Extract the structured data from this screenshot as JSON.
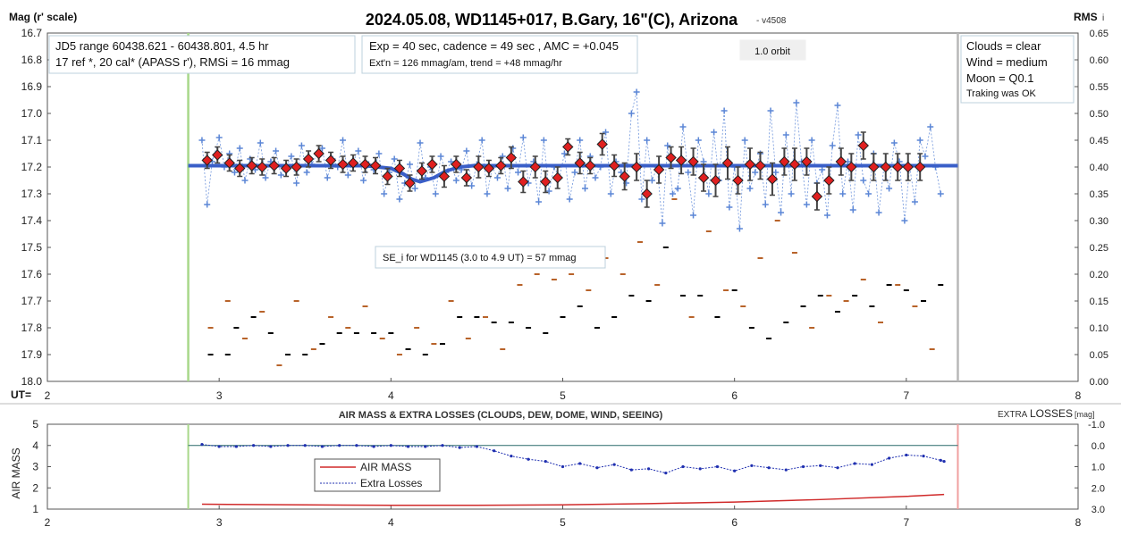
{
  "chart_data": [
    {
      "type": "scatter",
      "title": "2024.05.08, WD1145+017, B.Gary, 16\"(C), Arizona",
      "version": "- v4508",
      "ylabel": "Mag (r' scale)",
      "xlabel": "UT=",
      "y2label": "RMS",
      "y2label_sub": "i",
      "xlim": [
        2,
        8
      ],
      "ylim": [
        18.0,
        16.7
      ],
      "y2lim": [
        0.0,
        0.65
      ],
      "x_ticks": [
        "2",
        "3",
        "4",
        "5",
        "6",
        "7",
        "8"
      ],
      "y_ticks": [
        "16.7",
        "16.8",
        "16.9",
        "17.0",
        "17.1",
        "17.2",
        "17.3",
        "17.4",
        "17.5",
        "17.6",
        "17.7",
        "17.8",
        "17.9",
        "18.0"
      ],
      "y2_ticks": [
        "0.65",
        "0.60",
        "0.55",
        "0.50",
        "0.45",
        "0.40",
        "0.35",
        "0.30",
        "0.25",
        "0.20",
        "0.15",
        "0.10",
        "0.05",
        "0.00"
      ],
      "grid": false,
      "start_line_x": 2.82,
      "end_line_x": 7.3,
      "annotations": {
        "jd": [
          "JD5 range 60438.621 - 60438.801, 4.5 hr",
          "17 ref *, 20 cal*  (APASS r'), RMSi = 16 mmag"
        ],
        "exp": [
          "Exp = 40 sec, cadence = 49 sec , AMC = +0.045",
          "Ext'n = 126 mmag/am, trend = +48 mmag/hr"
        ],
        "orbit": "1.0 orbit",
        "cond": [
          "Clouds = clear",
          "Wind    = medium",
          "Moon   =  Q0.1",
          "Traking was OK"
        ],
        "se": "SE_i for WD1145 (3.0 to 4.9 UT) = 57 mmag"
      },
      "model": {
        "name": "model",
        "color": "#3a5fc8",
        "x": [
          2.82,
          3.85,
          4.0,
          4.07,
          4.12,
          4.17,
          4.25,
          4.32,
          4.4,
          4.48,
          7.3
        ],
        "y": [
          17.195,
          17.195,
          17.205,
          17.225,
          17.245,
          17.255,
          17.24,
          17.215,
          17.2,
          17.195,
          17.195
        ]
      },
      "series": [
        {
          "name": "raw",
          "color": "#5b86d6",
          "x": [
            2.9,
            2.93,
            2.96,
            3.0,
            3.03,
            3.06,
            3.09,
            3.12,
            3.15,
            3.18,
            3.21,
            3.24,
            3.27,
            3.3,
            3.33,
            3.36,
            3.39,
            3.42,
            3.45,
            3.48,
            3.51,
            3.54,
            3.57,
            3.6,
            3.63,
            3.66,
            3.69,
            3.72,
            3.75,
            3.78,
            3.81,
            3.84,
            3.87,
            3.9,
            3.93,
            3.96,
            3.99,
            4.02,
            4.05,
            4.08,
            4.11,
            4.14,
            4.17,
            4.2,
            4.23,
            4.26,
            4.29,
            4.32,
            4.35,
            4.38,
            4.41,
            4.44,
            4.47,
            4.5,
            4.53,
            4.56,
            4.59,
            4.62,
            4.65,
            4.68,
            4.71,
            4.74,
            4.77,
            4.8,
            4.83,
            4.86,
            4.89,
            4.92,
            4.95,
            4.98,
            5.01,
            5.04,
            5.07,
            5.1,
            5.13,
            5.16,
            5.19,
            5.22,
            5.25,
            5.28,
            5.31,
            5.34,
            5.37,
            5.4,
            5.43,
            5.46,
            5.49,
            5.52,
            5.55,
            5.58,
            5.61,
            5.64,
            5.67,
            5.7,
            5.73,
            5.76,
            5.79,
            5.82,
            5.85,
            5.88,
            5.91,
            5.94,
            5.97,
            6.0,
            6.03,
            6.06,
            6.09,
            6.12,
            6.15,
            6.18,
            6.21,
            6.24,
            6.27,
            6.3,
            6.33,
            6.36,
            6.39,
            6.42,
            6.45,
            6.48,
            6.51,
            6.54,
            6.57,
            6.6,
            6.63,
            6.66,
            6.69,
            6.72,
            6.75,
            6.78,
            6.81,
            6.84,
            6.87,
            6.9,
            6.93,
            6.96,
            6.99,
            7.02,
            7.05,
            7.08,
            7.11,
            7.14,
            7.17,
            7.2
          ],
          "y": [
            17.1,
            17.34,
            17.18,
            17.09,
            17.2,
            17.15,
            17.22,
            17.13,
            17.25,
            17.17,
            17.21,
            17.11,
            17.24,
            17.18,
            17.14,
            17.23,
            17.2,
            17.16,
            17.26,
            17.12,
            17.22,
            17.19,
            17.15,
            17.13,
            17.24,
            17.17,
            17.2,
            17.1,
            17.23,
            17.18,
            17.14,
            17.25,
            17.19,
            17.21,
            17.15,
            17.3,
            17.22,
            17.17,
            17.32,
            17.26,
            17.19,
            17.28,
            17.11,
            17.24,
            17.2,
            17.3,
            17.16,
            17.22,
            17.18,
            17.25,
            17.21,
            17.14,
            17.27,
            17.19,
            17.1,
            17.3,
            17.2,
            17.24,
            17.16,
            17.28,
            17.13,
            17.22,
            17.09,
            17.26,
            17.18,
            17.33,
            17.1,
            17.29,
            17.2,
            17.24,
            17.15,
            17.32,
            17.22,
            17.1,
            17.28,
            17.16,
            17.24,
            17.2,
            17.07,
            17.3,
            17.18,
            17.22,
            17.26,
            17.0,
            16.92,
            17.32,
            17.1,
            17.25,
            17.2,
            17.41,
            17.12,
            17.3,
            17.28,
            17.05,
            17.22,
            17.38,
            17.1,
            17.18,
            17.3,
            17.07,
            17.25,
            16.99,
            17.35,
            17.2,
            17.43,
            17.1,
            17.28,
            17.22,
            17.15,
            17.34,
            16.99,
            17.22,
            17.37,
            17.08,
            17.3,
            16.96,
            17.18,
            17.34,
            17.1,
            17.26,
            17.21,
            17.38,
            17.12,
            16.97,
            17.3,
            17.18,
            17.36,
            17.08,
            17.25,
            17.3,
            17.15,
            17.37,
            17.2,
            17.28,
            17.11,
            17.18,
            17.4,
            17.2,
            17.33,
            17.1,
            17.16,
            17.05,
            17.2,
            17.3
          ]
        },
        {
          "name": "binned",
          "color": "#e02020",
          "x": [
            2.93,
            2.99,
            3.06,
            3.12,
            3.19,
            3.25,
            3.32,
            3.39,
            3.45,
            3.52,
            3.58,
            3.65,
            3.72,
            3.78,
            3.85,
            3.91,
            3.98,
            4.05,
            4.11,
            4.18,
            4.24,
            4.31,
            4.38,
            4.44,
            4.51,
            4.57,
            4.64,
            4.7,
            4.77,
            4.84,
            4.9,
            4.97,
            5.03,
            5.1,
            5.16,
            5.23,
            5.3,
            5.36,
            5.43,
            5.49,
            5.56,
            5.63,
            5.69,
            5.76,
            5.82,
            5.89,
            5.96,
            6.02,
            6.09,
            6.15,
            6.22,
            6.29,
            6.35,
            6.42,
            6.48,
            6.55,
            6.62,
            6.68,
            6.75,
            6.81,
            6.88,
            6.95,
            7.01,
            7.08
          ],
          "y": [
            17.175,
            17.155,
            17.185,
            17.205,
            17.195,
            17.2,
            17.195,
            17.205,
            17.2,
            17.17,
            17.15,
            17.175,
            17.19,
            17.185,
            17.19,
            17.195,
            17.235,
            17.205,
            17.26,
            17.215,
            17.19,
            17.235,
            17.19,
            17.24,
            17.2,
            17.205,
            17.195,
            17.165,
            17.255,
            17.2,
            17.255,
            17.24,
            17.125,
            17.185,
            17.195,
            17.115,
            17.195,
            17.235,
            17.2,
            17.3,
            17.21,
            17.165,
            17.175,
            17.18,
            17.24,
            17.25,
            17.185,
            17.25,
            17.19,
            17.195,
            17.245,
            17.18,
            17.19,
            17.18,
            17.31,
            17.25,
            17.18,
            17.2,
            17.12,
            17.2,
            17.2,
            17.2,
            17.2,
            17.2
          ],
          "err": [
            0.03,
            0.03,
            0.03,
            0.03,
            0.03,
            0.03,
            0.03,
            0.03,
            0.03,
            0.03,
            0.03,
            0.03,
            0.03,
            0.03,
            0.03,
            0.03,
            0.03,
            0.03,
            0.03,
            0.03,
            0.03,
            0.04,
            0.03,
            0.03,
            0.04,
            0.03,
            0.03,
            0.04,
            0.04,
            0.04,
            0.04,
            0.04,
            0.03,
            0.04,
            0.03,
            0.04,
            0.04,
            0.05,
            0.05,
            0.05,
            0.05,
            0.04,
            0.05,
            0.05,
            0.05,
            0.06,
            0.06,
            0.05,
            0.06,
            0.05,
            0.06,
            0.05,
            0.06,
            0.05,
            0.05,
            0.05,
            0.05,
            0.05,
            0.05,
            0.05,
            0.05,
            0.05,
            0.05,
            0.05
          ]
        },
        {
          "name": "target rms",
          "color": "#000000",
          "x": [
            2.95,
            3.05,
            3.1,
            3.2,
            3.3,
            3.4,
            3.5,
            3.6,
            3.7,
            3.8,
            3.9,
            4.0,
            4.1,
            4.2,
            4.3,
            4.4,
            4.5,
            4.6,
            4.7,
            4.8,
            4.9,
            5.0,
            5.1,
            5.2,
            5.3,
            5.4,
            5.5,
            5.6,
            5.7,
            5.8,
            5.9,
            6.0,
            6.1,
            6.2,
            6.3,
            6.4,
            6.5,
            6.6,
            6.7,
            6.8,
            6.9,
            7.0,
            7.1,
            7.2
          ],
          "y": [
            0.05,
            0.05,
            0.1,
            0.12,
            0.09,
            0.05,
            0.05,
            0.07,
            0.09,
            0.09,
            0.09,
            0.09,
            0.06,
            0.05,
            0.07,
            0.12,
            0.12,
            0.11,
            0.11,
            0.1,
            0.09,
            0.12,
            0.14,
            0.1,
            0.12,
            0.16,
            0.15,
            0.25,
            0.16,
            0.16,
            0.12,
            0.17,
            0.1,
            0.08,
            0.11,
            0.14,
            0.16,
            0.13,
            0.16,
            0.14,
            0.18,
            0.17,
            0.15,
            0.18
          ]
        },
        {
          "name": "check star rms",
          "color": "#b8632a",
          "x": [
            2.95,
            3.05,
            3.15,
            3.25,
            3.35,
            3.45,
            3.55,
            3.65,
            3.75,
            3.85,
            3.95,
            4.05,
            4.15,
            4.25,
            4.35,
            4.45,
            4.55,
            4.65,
            4.75,
            4.85,
            4.95,
            5.05,
            5.15,
            5.25,
            5.35,
            5.45,
            5.55,
            5.65,
            5.75,
            5.85,
            5.95,
            6.05,
            6.15,
            6.25,
            6.35,
            6.45,
            6.55,
            6.65,
            6.75,
            6.85,
            6.95,
            7.05,
            7.15
          ],
          "y": [
            0.1,
            0.15,
            0.08,
            0.13,
            0.03,
            0.15,
            0.06,
            0.12,
            0.1,
            0.14,
            0.08,
            0.05,
            0.1,
            0.07,
            0.15,
            0.08,
            0.12,
            0.06,
            0.18,
            0.2,
            0.19,
            0.2,
            0.17,
            0.23,
            0.2,
            0.26,
            0.18,
            0.34,
            0.12,
            0.28,
            0.17,
            0.14,
            0.23,
            0.3,
            0.24,
            0.1,
            0.16,
            0.15,
            0.19,
            0.11,
            0.18,
            0.14,
            0.06
          ]
        }
      ]
    },
    {
      "type": "line",
      "title": "AIR MASS & EXTRA LOSSES (CLOUDS, DEW, DOME, WIND, SEEING)",
      "ylabel": "AIR MASS",
      "y2label_pre": "EXTRA",
      "y2label": "LOSSES",
      "y2label_unit": "[mag]",
      "xlim": [
        2,
        8
      ],
      "ylim": [
        1,
        5
      ],
      "y2lim": [
        3.0,
        -1.0
      ],
      "x_ticks": [
        "2",
        "3",
        "4",
        "5",
        "6",
        "7",
        "8"
      ],
      "y_ticks": [
        "5",
        "4",
        "3",
        "2",
        "1"
      ],
      "y2_ticks": [
        "-1.0",
        "0.0",
        "1.0",
        "2.0",
        "3.0"
      ],
      "legend": [
        "AIR MASS",
        "Extra Losses"
      ],
      "legend_position": "center-left",
      "series": [
        {
          "name": "AIR MASS",
          "color": "#d02a2a",
          "x": [
            2.9,
            3.5,
            4.0,
            4.5,
            5.0,
            5.5,
            6.0,
            6.5,
            7.0,
            7.22
          ],
          "y": [
            1.23,
            1.2,
            1.18,
            1.18,
            1.2,
            1.26,
            1.33,
            1.45,
            1.6,
            1.69
          ]
        },
        {
          "name": "Extra Losses",
          "color": "#1f2fb0",
          "x": [
            2.9,
            3.0,
            3.1,
            3.2,
            3.3,
            3.4,
            3.5,
            3.6,
            3.7,
            3.8,
            3.9,
            4.0,
            4.1,
            4.2,
            4.3,
            4.4,
            4.5,
            4.6,
            4.7,
            4.8,
            4.9,
            5.0,
            5.1,
            5.2,
            5.3,
            5.4,
            5.5,
            5.6,
            5.7,
            5.8,
            5.9,
            6.0,
            6.1,
            6.2,
            6.3,
            6.4,
            6.5,
            6.6,
            6.7,
            6.8,
            6.9,
            7.0,
            7.1,
            7.2,
            7.22
          ],
          "y": [
            -0.05,
            0.05,
            0.05,
            0.0,
            0.05,
            0.0,
            0.0,
            0.05,
            0.0,
            0.0,
            0.05,
            0.0,
            0.05,
            0.05,
            0.0,
            0.1,
            0.05,
            0.25,
            0.5,
            0.65,
            0.75,
            1.0,
            0.85,
            1.05,
            0.9,
            1.15,
            1.1,
            1.3,
            1.0,
            1.1,
            1.0,
            1.2,
            0.95,
            1.05,
            1.15,
            1.0,
            0.95,
            1.05,
            0.85,
            0.9,
            0.6,
            0.45,
            0.5,
            0.7,
            0.75
          ]
        }
      ],
      "reference_line_y2": 0.0,
      "start_line_x": 2.82,
      "end_line_x": 7.3
    }
  ]
}
